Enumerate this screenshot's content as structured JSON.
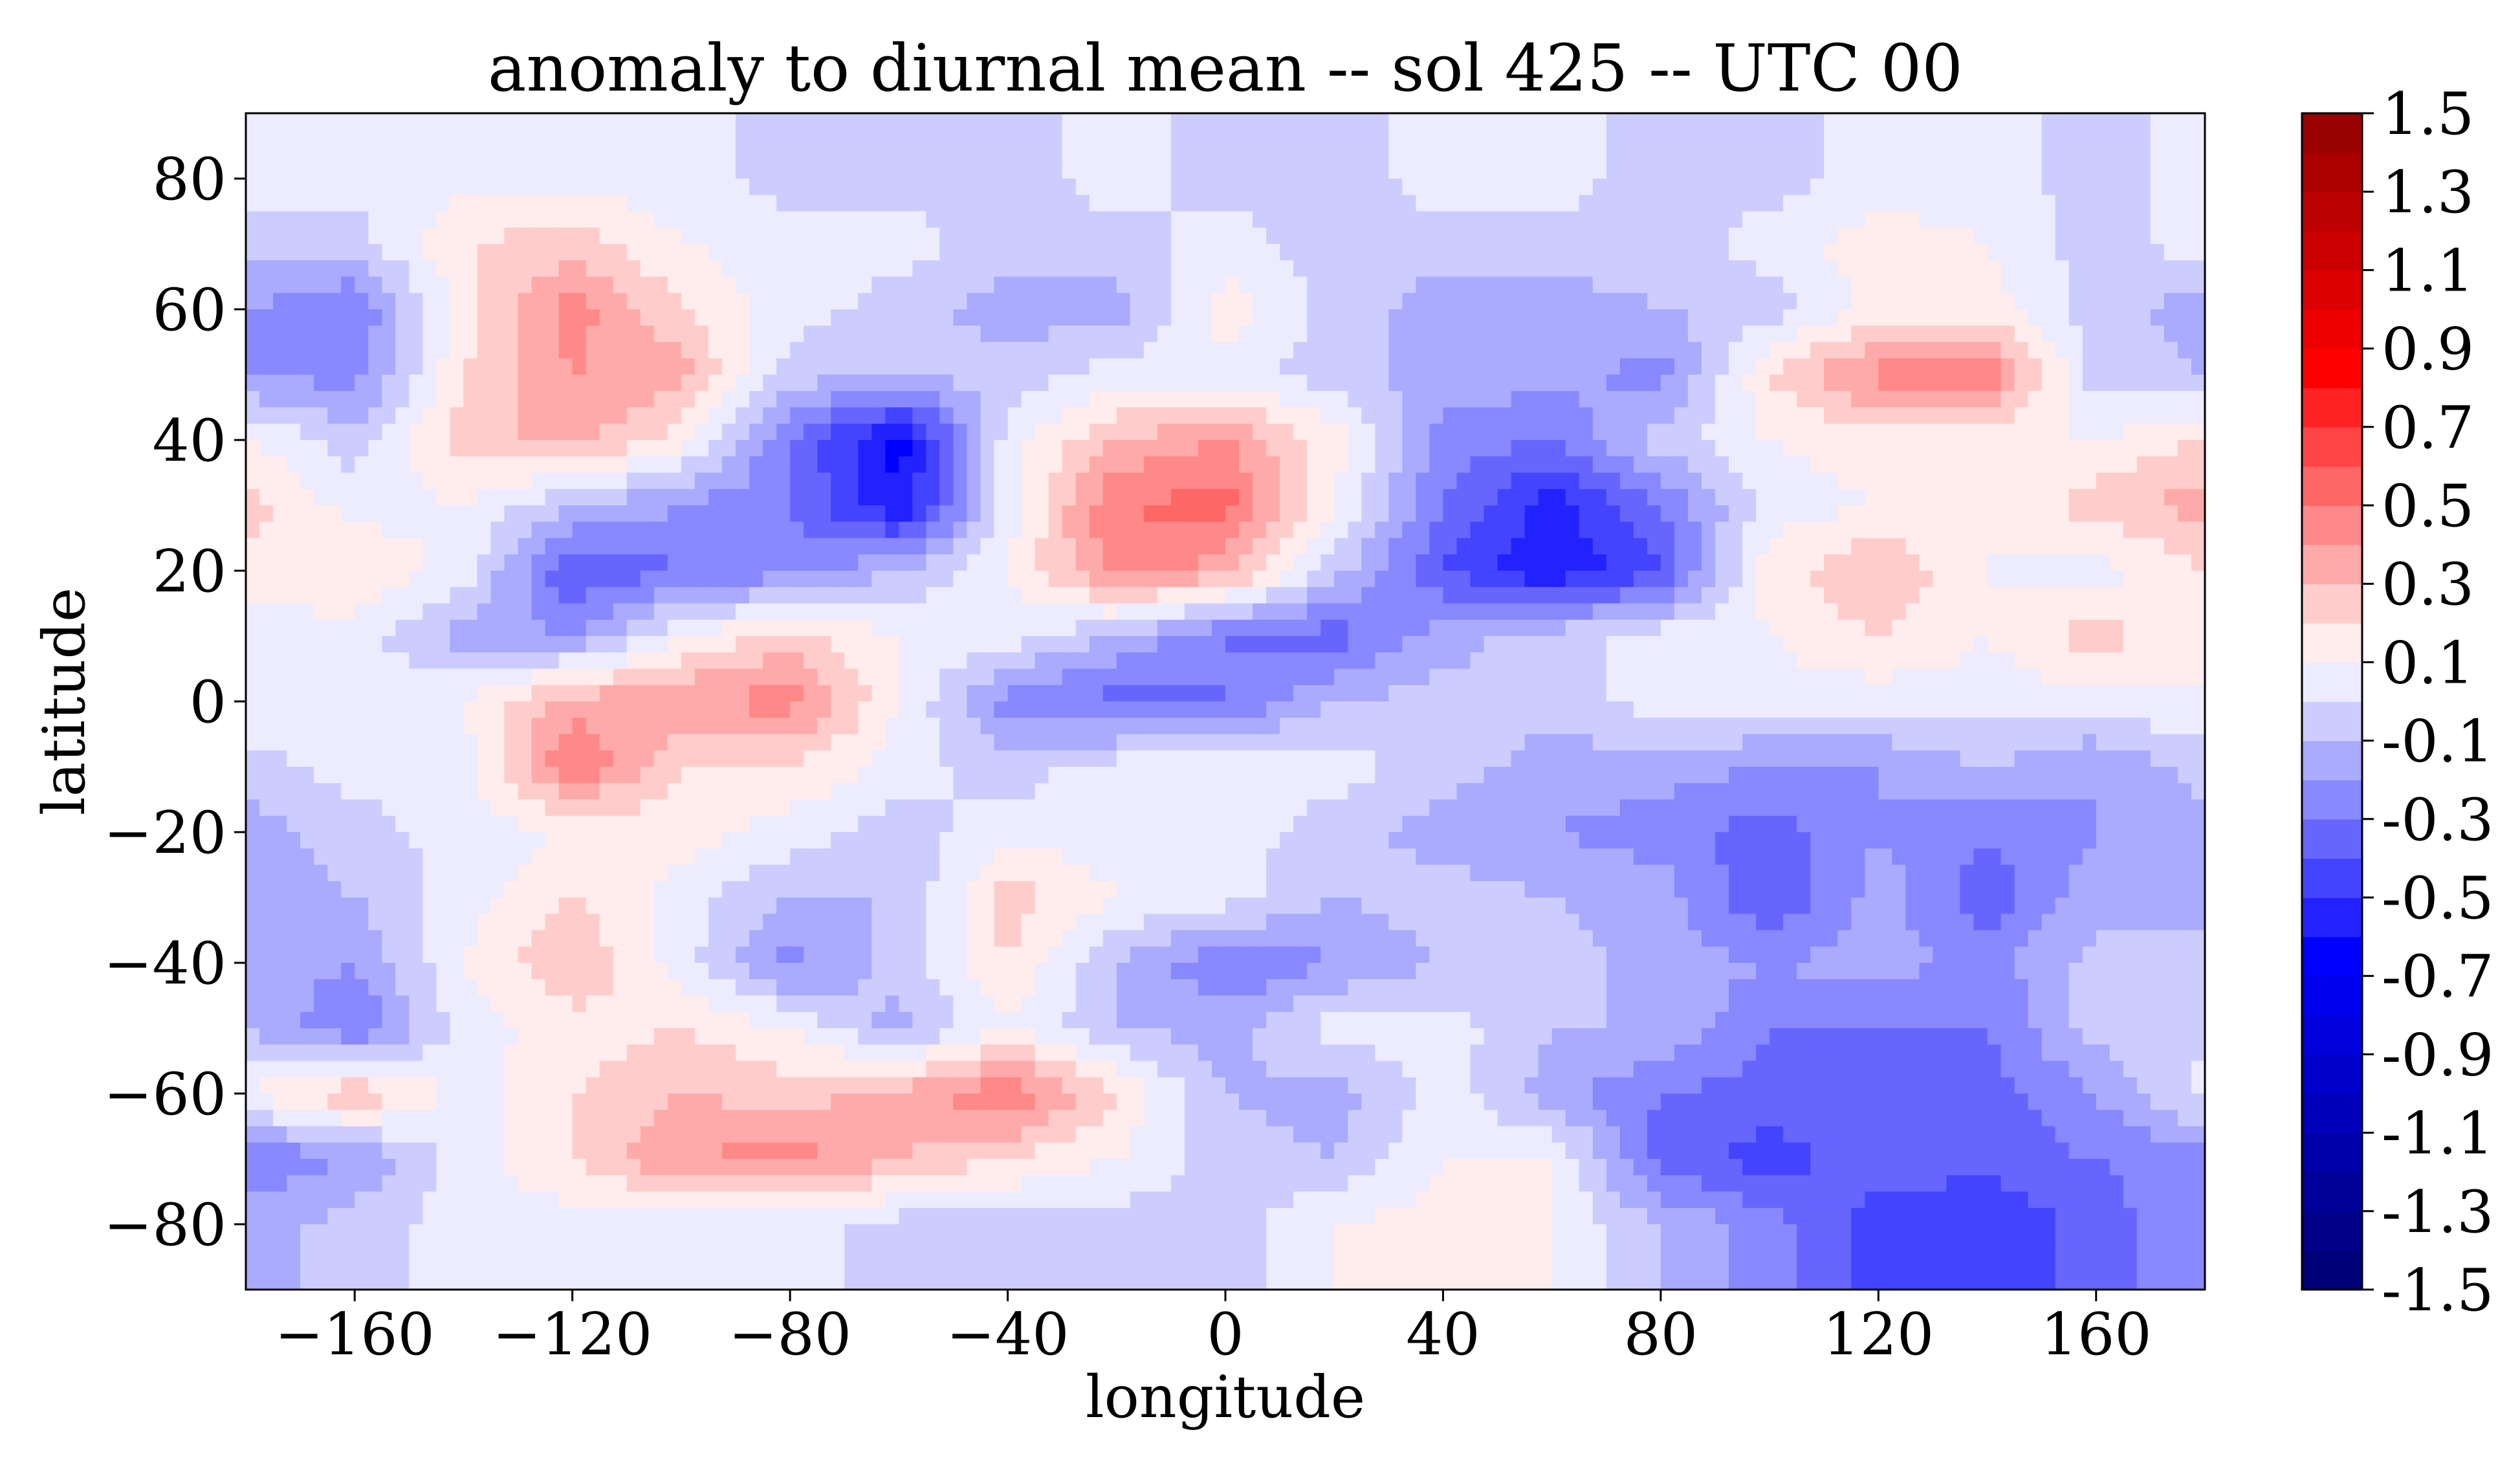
{
  "chart_data": {
    "type": "heatmap",
    "subtype": "filled-contour",
    "title": "anomaly to diurnal mean -- sol 425 -- UTC 00",
    "xlabel": "longitude",
    "ylabel": "latitude",
    "xlim": [
      -180,
      180
    ],
    "ylim": [
      -90,
      90
    ],
    "xticks": [
      -160,
      -120,
      -80,
      -40,
      0,
      40,
      80,
      120,
      160
    ],
    "xtick_labels": [
      "−160",
      "−120",
      "−80",
      "−40",
      "0",
      "40",
      "80",
      "120",
      "160"
    ],
    "yticks": [
      80,
      60,
      40,
      20,
      0,
      -20,
      -40,
      -60,
      -80
    ],
    "ytick_labels": [
      "80",
      "60",
      "40",
      "20",
      "0",
      "−20",
      "−40",
      "−60",
      "−80"
    ],
    "grid": false,
    "lon": [
      -180,
      -160,
      -140,
      -120,
      -100,
      -80,
      -60,
      -40,
      -20,
      0,
      20,
      40,
      60,
      80,
      100,
      120,
      140,
      160,
      180
    ],
    "lat": [
      80,
      70,
      60,
      50,
      40,
      30,
      20,
      10,
      0,
      -10,
      -20,
      -30,
      -40,
      -50,
      -60,
      -70,
      -80
    ],
    "values": [
      [
        0.05,
        0.05,
        0.05,
        0.05,
        0.05,
        -0.05,
        -0.05,
        -0.05,
        0.05,
        -0.05,
        -0.05,
        0.05,
        0.05,
        -0.05,
        -0.05,
        0.05,
        0.05,
        -0.05,
        0.05
      ],
      [
        -0.05,
        -0.05,
        0.2,
        0.25,
        0.1,
        0.05,
        0.05,
        -0.05,
        -0.05,
        0.05,
        -0.05,
        -0.05,
        -0.05,
        -0.05,
        0.05,
        0.15,
        0.1,
        -0.05,
        0.05
      ],
      [
        -0.2,
        -0.3,
        0.15,
        0.45,
        0.2,
        0.05,
        -0.05,
        -0.15,
        -0.15,
        0.15,
        -0.05,
        -0.15,
        -0.15,
        -0.1,
        -0.05,
        0.15,
        0.15,
        -0.05,
        -0.15
      ],
      [
        -0.2,
        -0.25,
        0.2,
        0.4,
        0.35,
        -0.05,
        -0.1,
        -0.05,
        0.05,
        0.05,
        -0.05,
        -0.15,
        -0.15,
        -0.25,
        0.2,
        0.45,
        0.5,
        -0.05,
        -0.1
      ],
      [
        0.1,
        -0.05,
        0.25,
        0.35,
        0.15,
        -0.3,
        -0.65,
        0.05,
        0.3,
        0.4,
        0.15,
        -0.25,
        -0.3,
        -0.05,
        0.1,
        0.15,
        0.1,
        0.1,
        0.2
      ],
      [
        0.25,
        0.05,
        0.1,
        -0.1,
        -0.2,
        -0.3,
        -0.6,
        0.05,
        0.5,
        0.55,
        0.1,
        -0.3,
        -0.55,
        -0.3,
        0.05,
        0.1,
        0.1,
        0.25,
        0.35
      ],
      [
        0.15,
        0.2,
        0.05,
        -0.4,
        -0.3,
        -0.25,
        -0.1,
        0.1,
        0.45,
        0.35,
        -0.05,
        -0.4,
        -0.6,
        -0.4,
        0.15,
        0.3,
        0.1,
        0.05,
        0.2
      ],
      [
        0.05,
        0.05,
        -0.15,
        -0.2,
        0.1,
        0.25,
        0.1,
        0.05,
        -0.1,
        -0.3,
        -0.35,
        -0.15,
        -0.05,
        0.05,
        0.1,
        0.2,
        0.1,
        0.25,
        0.1
      ],
      [
        0.1,
        0.05,
        0.1,
        0.35,
        0.4,
        0.45,
        0.1,
        -0.25,
        -0.35,
        -0.3,
        -0.1,
        -0.05,
        -0.05,
        0.05,
        0.05,
        0.05,
        0.05,
        0.05,
        0.1
      ],
      [
        -0.05,
        0.05,
        0.05,
        0.5,
        0.2,
        0.2,
        0.05,
        -0.05,
        0.05,
        0.05,
        0.05,
        -0.05,
        -0.15,
        -0.15,
        -0.2,
        -0.2,
        -0.1,
        -0.2,
        -0.05
      ],
      [
        -0.15,
        -0.05,
        0.05,
        0.1,
        0.15,
        0.05,
        -0.05,
        0.05,
        0.05,
        0.05,
        -0.05,
        -0.15,
        -0.2,
        -0.25,
        -0.35,
        -0.2,
        -0.3,
        -0.2,
        -0.15
      ],
      [
        -0.15,
        -0.1,
        0.05,
        0.2,
        0.05,
        -0.1,
        -0.1,
        0.25,
        0.1,
        0.05,
        -0.1,
        -0.05,
        -0.1,
        -0.15,
        -0.4,
        -0.15,
        -0.35,
        -0.15,
        -0.1
      ],
      [
        -0.15,
        -0.2,
        0.1,
        0.3,
        0.05,
        -0.25,
        -0.05,
        0.2,
        -0.1,
        -0.3,
        -0.2,
        -0.1,
        -0.05,
        -0.15,
        -0.2,
        -0.15,
        -0.25,
        -0.05,
        -0.1
      ],
      [
        -0.1,
        -0.3,
        0.05,
        0.15,
        0.2,
        0.1,
        -0.15,
        0.1,
        -0.1,
        -0.15,
        0.05,
        0.05,
        -0.1,
        -0.1,
        -0.3,
        -0.3,
        -0.3,
        -0.05,
        -0.05
      ],
      [
        0.1,
        0.3,
        0.05,
        0.2,
        0.3,
        0.25,
        0.35,
        0.5,
        0.2,
        -0.1,
        -0.15,
        0.05,
        -0.15,
        -0.3,
        -0.35,
        -0.3,
        -0.35,
        -0.2,
        0.05
      ],
      [
        -0.3,
        -0.2,
        0.05,
        0.2,
        0.4,
        0.45,
        0.3,
        0.2,
        0.1,
        -0.05,
        -0.1,
        0.1,
        0.1,
        -0.35,
        -0.45,
        -0.35,
        -0.35,
        -0.3,
        -0.25
      ],
      [
        -0.15,
        -0.05,
        0.05,
        0.05,
        0.05,
        0.05,
        -0.05,
        -0.05,
        -0.05,
        -0.05,
        0.1,
        0.15,
        0.1,
        -0.1,
        -0.25,
        -0.45,
        -0.5,
        -0.35,
        -0.2
      ]
    ],
    "colorbar": {
      "levels_min": -1.5,
      "levels_max": 1.5,
      "level_step": 0.1,
      "tick_labels": [
        "1.5",
        "1.3",
        "1.1",
        "0.9",
        "0.7",
        "0.5",
        "0.3",
        "0.1",
        "-0.1",
        "-0.3",
        "-0.5",
        "-0.7",
        "-0.9",
        "-1.1",
        "-1.3",
        "-1.5"
      ],
      "colors_low_to_high": [
        "#000050",
        "#000066",
        "#000077",
        "#000088",
        "#000099",
        "#0000aa",
        "#0000bb",
        "#0000cc",
        "#0000dd",
        "#0000ee",
        "#0000ff",
        "#2222ff",
        "#4444ff",
        "#6666ff",
        "#8888ff",
        "#aaaaff",
        "#ccccff",
        "#ececfe",
        "#ffecec",
        "#ffcccc",
        "#ffaaaa",
        "#ff8888",
        "#ff6666",
        "#ff4444",
        "#ff2222",
        "#ff0000",
        "#ee0000",
        "#dd0000",
        "#cc0000",
        "#bb0000",
        "#aa0000",
        "#990000",
        "#880000",
        "#800000"
      ]
    }
  }
}
